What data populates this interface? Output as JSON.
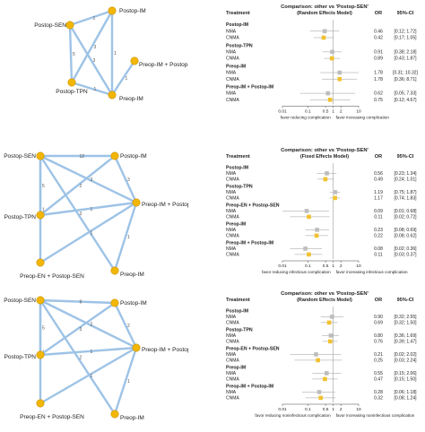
{
  "chart_data": [
    {
      "type": "network",
      "nodes": [
        {
          "id": "Postop-SEN",
          "label": "Postop-SEN"
        },
        {
          "id": "Postop-IM",
          "label": "Postop-IM"
        },
        {
          "id": "Postop-TPN",
          "label": "Postop-TPN"
        },
        {
          "id": "Preop-IM",
          "label": "Preop-IM"
        },
        {
          "id": "Preop-IM + Postop-IM",
          "label": "Preop-IM + Postop-IM"
        }
      ],
      "edges": [
        {
          "from": "Postop-SEN",
          "to": "Postop-IM",
          "label": "1"
        },
        {
          "from": "Postop-SEN",
          "to": "Postop-TPN",
          "label": "5"
        },
        {
          "from": "Postop-SEN",
          "to": "Preop-IM",
          "label": "3"
        },
        {
          "from": "Postop-IM",
          "to": "Postop-TPN",
          "label": "3"
        },
        {
          "from": "Postop-IM",
          "to": "Preop-IM",
          "label": "1"
        },
        {
          "from": "Postop-TPN",
          "to": "Preop-IM",
          "label": "1"
        },
        {
          "from": "Preop-IM",
          "to": "Preop-IM + Postop-IM",
          "label": "1"
        }
      ]
    },
    {
      "type": "forest",
      "title": "Comparison: other vs 'Postop-SEN'",
      "subtitle": "(Random Effects Model)",
      "header": {
        "treatment": "Treatment",
        "or": "OR",
        "ci": "95%-CI"
      },
      "scale": "log",
      "xlim": [
        0.01,
        10
      ],
      "ticks": [
        "0.01",
        "0.1",
        "0.5",
        "1",
        "2",
        "10"
      ],
      "favor_left": "favor reducing complication",
      "favor_right": "favor increasing complication",
      "groups": [
        {
          "name": "Postop-IM",
          "rows": [
            {
              "method": "NMA",
              "or": 0.46,
              "lo": 0.12,
              "hi": 1.72,
              "text": "0.46",
              "ci": "[0.12; 1.72]"
            },
            {
              "method": "CNMA",
              "or": 0.42,
              "lo": 0.17,
              "hi": 1.05,
              "text": "0.42",
              "ci": "[0.17; 1.05]"
            }
          ]
        },
        {
          "name": "Postop-TPN",
          "rows": [
            {
              "method": "NMA",
              "or": 0.91,
              "lo": 0.38,
              "hi": 2.18,
              "text": "0.91",
              "ci": "[0.38; 2.18]"
            },
            {
              "method": "CNMA",
              "or": 0.89,
              "lo": 0.43,
              "hi": 1.87,
              "text": "0.89",
              "ci": "[0.43; 1.87]"
            }
          ]
        },
        {
          "name": "Preop-IM",
          "rows": [
            {
              "method": "NMA",
              "or": 1.78,
              "lo": 0.31,
              "hi": 10.32,
              "text": "1.78",
              "ci": "[0.31; 10.32]"
            },
            {
              "method": "CNMA",
              "or": 1.78,
              "lo": 0.36,
              "hi": 8.71,
              "text": "1.78",
              "ci": "[0.36; 8.71]"
            }
          ]
        },
        {
          "name": "Preop-IM + Postop-IM",
          "rows": [
            {
              "method": "NMA",
              "or": 0.62,
              "lo": 0.05,
              "hi": 7.33,
              "text": "0.62",
              "ci": "[0.05; 7.33]"
            },
            {
              "method": "CNMA",
              "or": 0.75,
              "lo": 0.12,
              "hi": 4.67,
              "text": "0.75",
              "ci": "[0.12; 4.67]"
            }
          ]
        }
      ]
    },
    {
      "type": "network",
      "nodes": [
        {
          "id": "Postop-SEN",
          "label": "Postop-SEN"
        },
        {
          "id": "Postop-IM",
          "label": "Postop-IM"
        },
        {
          "id": "Postop-TPN",
          "label": "Postop-TPN"
        },
        {
          "id": "Preop-IM + Postop-IM",
          "label": "Preop-IM + Postop-IM"
        },
        {
          "id": "Preop-EN + Postop-SEN",
          "label": "Preop-EN + Postop-SEN"
        },
        {
          "id": "Preop-IM",
          "label": "Preop-IM"
        }
      ],
      "edges": [
        {
          "from": "Postop-SEN",
          "to": "Postop-IM",
          "label": "12"
        },
        {
          "from": "Postop-SEN",
          "to": "Postop-TPN",
          "label": "5"
        },
        {
          "from": "Postop-SEN",
          "to": "Preop-IM + Postop-IM",
          "label": "3"
        },
        {
          "from": "Postop-SEN",
          "to": "Preop-EN + Postop-SEN",
          "label": "1"
        },
        {
          "from": "Postop-SEN",
          "to": "Preop-IM",
          "label": "3"
        },
        {
          "from": "Postop-IM",
          "to": "Postop-TPN",
          "label": "2"
        },
        {
          "from": "Postop-IM",
          "to": "Preop-IM + Postop-IM",
          "label": "3"
        },
        {
          "from": "Postop-TPN",
          "to": "Preop-IM + Postop-IM",
          "label": "1"
        },
        {
          "from": "Preop-EN + Postop-SEN",
          "to": "Preop-IM + Postop-IM",
          "label": "1"
        },
        {
          "from": "Preop-IM + Postop-IM",
          "to": "Preop-IM",
          "label": "1"
        }
      ]
    },
    {
      "type": "forest",
      "title": "Comparison: other vs 'Postop-SEN'",
      "subtitle": "(Fixed Effects Model)",
      "header": {
        "treatment": "Treatment",
        "or": "OR",
        "ci": "95%-CI"
      },
      "scale": "log",
      "xlim": [
        0.01,
        10
      ],
      "ticks": [
        "0.01",
        "0.1",
        "0.5",
        "1",
        "2",
        "10"
      ],
      "favor_left": "favor reducing infectious complication",
      "favor_right": "favor increasing infectious complication",
      "groups": [
        {
          "name": "Postop-IM",
          "rows": [
            {
              "method": "NMA",
              "or": 0.56,
              "lo": 0.23,
              "hi": 1.34,
              "text": "0.56",
              "ci": "[0.23; 1.34]"
            },
            {
              "method": "CNMA",
              "or": 0.49,
              "lo": 0.24,
              "hi": 1.01,
              "text": "0.49",
              "ci": "[0.24; 1.01]"
            }
          ]
        },
        {
          "name": "Postop-TPN",
          "rows": [
            {
              "method": "NMA",
              "or": 1.19,
              "lo": 0.75,
              "hi": 1.87,
              "text": "1.19",
              "ci": "[0.75; 1.87]"
            },
            {
              "method": "CNMA",
              "or": 1.17,
              "lo": 0.74,
              "hi": 1.83,
              "text": "1.17",
              "ci": "[0.74; 1.83]"
            }
          ]
        },
        {
          "name": "Preop-EN + Postop-SEN",
          "rows": [
            {
              "method": "NMA",
              "or": 0.09,
              "lo": 0.01,
              "hi": 0.68,
              "text": "0.09",
              "ci": "[0.01; 0.68]"
            },
            {
              "method": "CNMA",
              "or": 0.11,
              "lo": 0.02,
              "hi": 0.72,
              "text": "0.11",
              "ci": "[0.02; 0.72]"
            }
          ]
        },
        {
          "name": "Preop-IM",
          "rows": [
            {
              "method": "NMA",
              "or": 0.23,
              "lo": 0.08,
              "hi": 0.69,
              "text": "0.23",
              "ci": "[0.08; 0.69]"
            },
            {
              "method": "CNMA",
              "or": 0.22,
              "lo": 0.08,
              "hi": 0.62,
              "text": "0.22",
              "ci": "[0.08; 0.62]"
            }
          ]
        },
        {
          "name": "Preop-IM + Postop-IM",
          "rows": [
            {
              "method": "NMA",
              "or": 0.08,
              "lo": 0.02,
              "hi": 0.36,
              "text": "0.08",
              "ci": "[0.02; 0.36]"
            },
            {
              "method": "CNMA",
              "or": 0.11,
              "lo": 0.03,
              "hi": 0.37,
              "text": "0.11",
              "ci": "[0.03; 0.37]"
            }
          ]
        }
      ]
    },
    {
      "type": "network",
      "nodes": [
        {
          "id": "Postop-SEN",
          "label": "Postop-SEN"
        },
        {
          "id": "Postop-IM",
          "label": "Postop-IM"
        },
        {
          "id": "Postop-TPN",
          "label": "Postop-TPN"
        },
        {
          "id": "Preop-IM + Postop-IM",
          "label": "Preop-IM + Postop-IM"
        },
        {
          "id": "Preop-EN + Postop-SEN",
          "label": "Preop-EN + Postop-SEN"
        },
        {
          "id": "Preop-IM",
          "label": "Preop-IM"
        }
      ],
      "edges": [
        {
          "from": "Postop-SEN",
          "to": "Postop-IM",
          "label": "9"
        },
        {
          "from": "Postop-SEN",
          "to": "Postop-TPN",
          "label": "5"
        },
        {
          "from": "Postop-SEN",
          "to": "Preop-IM + Postop-IM",
          "label": "2"
        },
        {
          "from": "Postop-SEN",
          "to": "Preop-EN + Postop-SEN",
          "label": "1"
        },
        {
          "from": "Postop-SEN",
          "to": "Preop-IM",
          "label": "2"
        },
        {
          "from": "Postop-IM",
          "to": "Postop-TPN",
          "label": "3"
        },
        {
          "from": "Postop-IM",
          "to": "Preop-IM + Postop-IM",
          "label": "2"
        },
        {
          "from": "Postop-TPN",
          "to": "Preop-IM + Postop-IM",
          "label": "1"
        },
        {
          "from": "Preop-EN + Postop-SEN",
          "to": "Preop-IM + Postop-IM",
          "label": "1"
        },
        {
          "from": "Preop-IM + Postop-IM",
          "to": "Preop-IM",
          "label": "1"
        }
      ]
    },
    {
      "type": "forest",
      "title": "Comparison: other vs 'Postop-SEN'",
      "subtitle": "(Random Effects Model)",
      "header": {
        "treatment": "Treatment",
        "or": "OR",
        "ci": "95%-CI"
      },
      "scale": "log",
      "xlim": [
        0.01,
        10
      ],
      "ticks": [
        "0.01",
        "0.1",
        "0.5",
        "1",
        "2",
        "10"
      ],
      "favor_left": "favor reducing noninfectious complication",
      "favor_right": "favor increasing noninfectious complication",
      "groups": [
        {
          "name": "Postop-IM",
          "rows": [
            {
              "method": "NMA",
              "or": 0.9,
              "lo": 0.32,
              "hi": 2.55,
              "text": "0.90",
              "ci": "[0.32; 2.55]"
            },
            {
              "method": "CNMA",
              "or": 0.69,
              "lo": 0.32,
              "hi": 1.5,
              "text": "0.69",
              "ci": "[0.32; 1.50]"
            }
          ]
        },
        {
          "name": "Postop-TPN",
          "rows": [
            {
              "method": "NMA",
              "or": 0.8,
              "lo": 0.36,
              "hi": 1.69,
              "text": "0.80",
              "ci": "[0.36; 1.69]"
            },
            {
              "method": "CNMA",
              "or": 0.76,
              "lo": 0.39,
              "hi": 1.47,
              "text": "0.76",
              "ci": "[0.39; 1.47]"
            }
          ]
        },
        {
          "name": "Preop-EN + Postop-SEN",
          "rows": [
            {
              "method": "NMA",
              "or": 0.21,
              "lo": 0.02,
              "hi": 2.02,
              "text": "0.21",
              "ci": "[0.02; 2.02]"
            },
            {
              "method": "CNMA",
              "or": 0.25,
              "lo": 0.03,
              "hi": 2.24,
              "text": "0.25",
              "ci": "[0.03; 2.24]"
            }
          ]
        },
        {
          "name": "Preop-IM",
          "rows": [
            {
              "method": "NMA",
              "or": 0.55,
              "lo": 0.15,
              "hi": 2.06,
              "text": "0.55",
              "ci": "[0.15; 2.06]"
            },
            {
              "method": "CNMA",
              "or": 0.47,
              "lo": 0.15,
              "hi": 1.5,
              "text": "0.47",
              "ci": "[0.15; 1.50]"
            }
          ]
        },
        {
          "name": "Preop-IM + Postop-IM",
          "rows": [
            {
              "method": "NMA",
              "or": 0.28,
              "lo": 0.06,
              "hi": 1.18,
              "text": "0.28",
              "ci": "[0.06; 1.18]"
            },
            {
              "method": "CNMA",
              "or": 0.32,
              "lo": 0.08,
              "hi": 1.24,
              "text": "0.32",
              "ci": "[0.08; 1.24]"
            }
          ]
        }
      ]
    }
  ],
  "colors": {
    "node": "#f2b705",
    "node_stroke": "#c98f00",
    "edge": "#9ec3e6",
    "nma": "#bdbdbd",
    "cnma": "#f2c12e",
    "grid": "#cccccc",
    "text": "#222222"
  }
}
